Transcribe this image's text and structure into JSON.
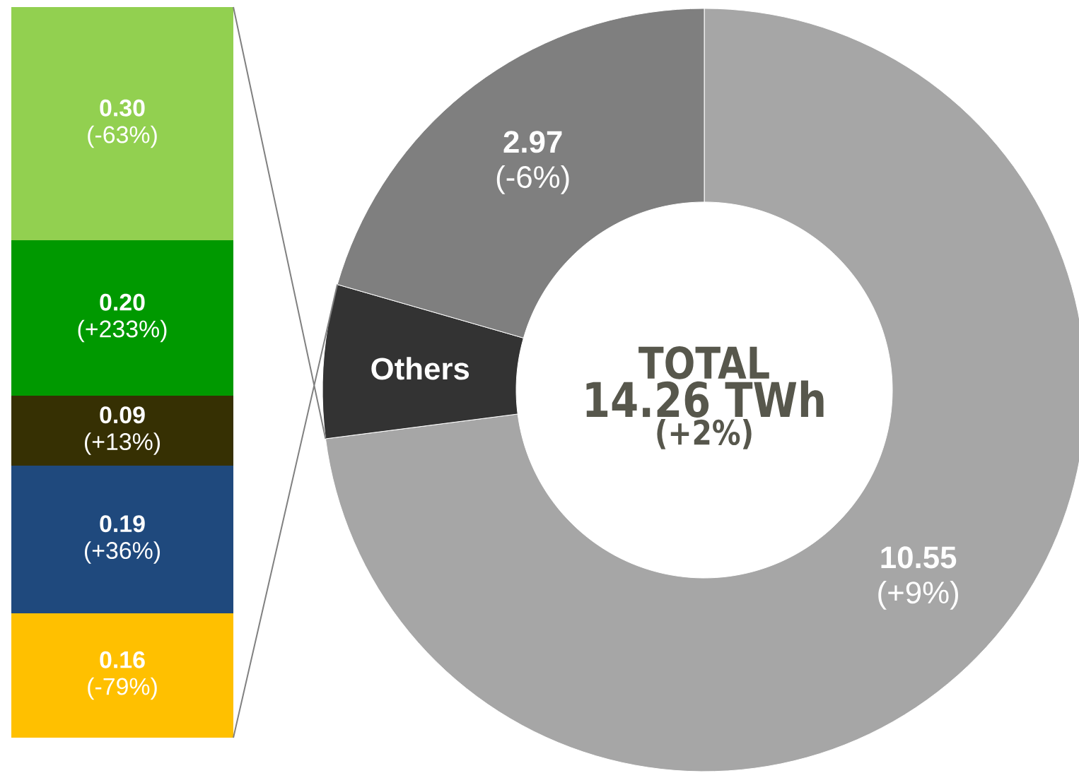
{
  "chart_data": [
    {
      "type": "bar",
      "stacked": true,
      "categories": [
        null
      ],
      "series": [
        {
          "color": "#ffc000",
          "values": [
            0.16
          ],
          "value_labels": [
            "**0.16** (-79%)"
          ]
        },
        {
          "color": "#1f497d",
          "values": [
            0.19
          ],
          "value_labels": [
            "**0.19** (+36%)"
          ]
        },
        {
          "color": "#363003",
          "values": [
            0.09
          ],
          "value_labels": [
            "**0.09** (+13%)"
          ]
        },
        {
          "color": "#009900",
          "values": [
            0.2
          ],
          "value_labels": [
            "**0.20** (+233%)"
          ]
        },
        {
          "color": "#92d050",
          "values": [
            0.3
          ],
          "value_labels": [
            "**0.30** (-63%)"
          ]
        }
      ]
    },
    {
      "type": "donut",
      "categories": [
        null,
        "Others",
        null
      ],
      "values": [
        10.55,
        0.94,
        2.97
      ],
      "colors": [
        "#a6a6a6",
        "#333333",
        "#7f7f7f"
      ],
      "value_labels": [
        "**10.55** (+9%)",
        null,
        "**2.97** (-6%)"
      ],
      "annotations": [
        "TOTAL",
        "14.26 TWh",
        "(+2%)"
      ]
    }
  ]
}
